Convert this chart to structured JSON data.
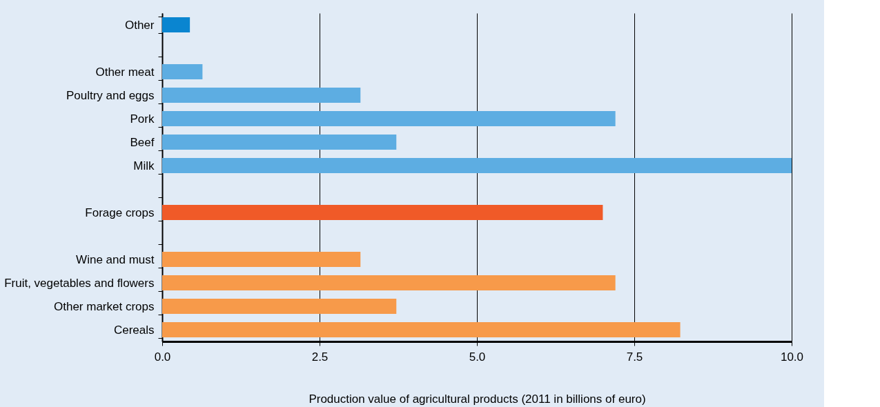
{
  "chart_data": {
    "type": "bar",
    "orientation": "horizontal",
    "xlabel": "Production value of agricultural products (2011 in billions of euro)",
    "categories": [
      "Other",
      null,
      "Other meat",
      "Poultry and eggs",
      "Pork",
      "Beef",
      "Milk",
      null,
      "Forage crops",
      null,
      "Wine and must",
      "Fruit, vegetables and flowers",
      "Other market crops",
      "Cereals"
    ],
    "values": [
      0.44,
      null,
      0.64,
      3.15,
      7.2,
      3.72,
      10.0,
      null,
      7.0,
      null,
      3.15,
      7.2,
      3.72,
      8.23
    ],
    "colors": [
      "#0a85d0",
      "#5dade2",
      "#5dade2",
      "#5dade2",
      "#5dade2",
      "#5dade2",
      "#5dade2",
      "#f05a28",
      "#f05a28",
      "#f79a4a",
      "#f79a4a",
      "#f79a4a",
      "#f79a4a",
      "#f79a4a"
    ],
    "xlim": [
      0,
      10
    ],
    "xticks": [
      {
        "value": 0,
        "label": "0.0"
      },
      {
        "value": 2.5,
        "label": "2.5"
      },
      {
        "value": 5,
        "label": "5.0"
      },
      {
        "value": 7.5,
        "label": "7.5"
      },
      {
        "value": 10,
        "label": "10.0"
      }
    ],
    "grid": "x",
    "legend": false
  }
}
